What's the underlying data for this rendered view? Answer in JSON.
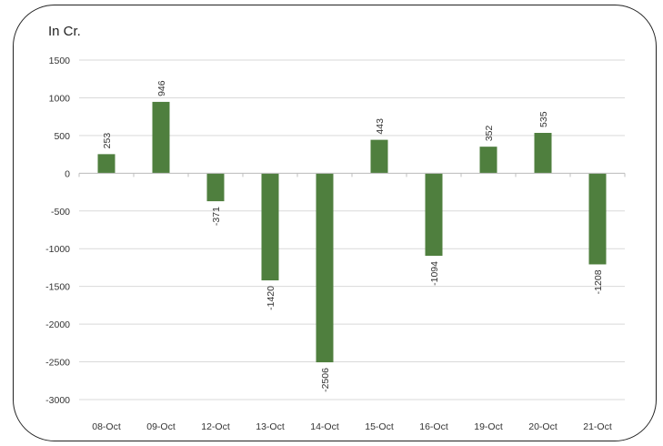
{
  "chart_data": {
    "type": "bar",
    "unit_label": "In Cr.",
    "categories": [
      "08-Oct",
      "09-Oct",
      "12-Oct",
      "13-Oct",
      "14-Oct",
      "15-Oct",
      "16-Oct",
      "19-Oct",
      "20-Oct",
      "21-Oct"
    ],
    "values": [
      253,
      946,
      -371,
      -1420,
      -2506,
      443,
      -1094,
      352,
      535,
      -1208
    ],
    "ylim": [
      -3000,
      1500
    ],
    "yticks": [
      "1500",
      "1000",
      "500",
      "0",
      "-500",
      "-1000",
      "-1500",
      "-2000",
      "-2500",
      "-3000"
    ],
    "grid": true,
    "bar_color": "#4f7f3e",
    "grid_color": "#d9d9d9",
    "data_labels": [
      "253",
      "946",
      "-371",
      "-1420",
      "-2506",
      "443",
      "-1094",
      "352",
      "535",
      "-1208"
    ]
  }
}
